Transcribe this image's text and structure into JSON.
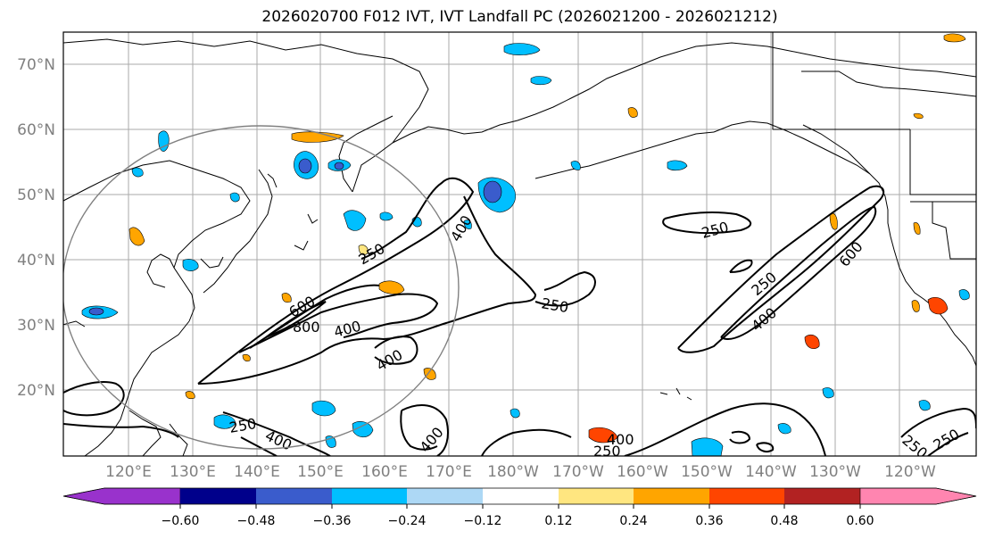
{
  "title": "2026020700 F012 IVT, IVT Landfall PC (2026021200 - 2026021212)",
  "lat_labels": [
    "70°N",
    "60°N",
    "50°N",
    "40°N",
    "30°N",
    "20°N"
  ],
  "lon_labels": [
    "120°E",
    "130°E",
    "140°E",
    "150°E",
    "160°E",
    "170°E",
    "180°W",
    "170°W",
    "160°W",
    "150°W",
    "140°W",
    "130°W",
    "120°W"
  ],
  "contour_labels": [
    "250",
    "250",
    "250",
    "250",
    "250",
    "250",
    "250",
    "250",
    "400",
    "400",
    "400",
    "400",
    "400",
    "400",
    "400",
    "600",
    "600",
    "800"
  ],
  "colorbar": {
    "ticks": [
      "−0.60",
      "−0.48",
      "−0.36",
      "−0.24",
      "−0.12",
      "0.12",
      "0.24",
      "0.36",
      "0.48",
      "0.60"
    ],
    "colors": [
      "#9932cc",
      "#00008b",
      "#3a5ccc",
      "#00bfff",
      "#add8f5",
      "#ffffff",
      "#ffe680",
      "#ffa500",
      "#ff4500",
      "#b22222",
      "#ff85b0"
    ]
  }
}
